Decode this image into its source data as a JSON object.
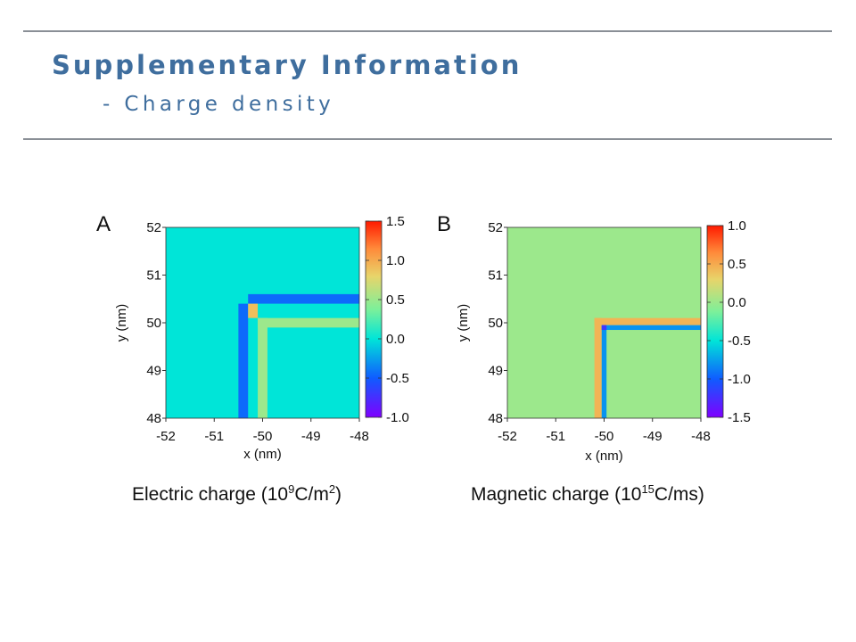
{
  "header": {
    "title": "Supplementary Information",
    "subtitle": "- Charge density"
  },
  "captions": {
    "a": {
      "pre": "Electric charge (10",
      "exp1": "9",
      "mid": "C/m",
      "exp2": "2",
      "post": ")"
    },
    "b": {
      "pre": "Magnetic charge (10",
      "exp1": "15",
      "post": "C/ms)"
    }
  },
  "colormap": "rainbow",
  "chart_data": [
    {
      "type": "heatmap",
      "panel_label": "A",
      "xlabel": "x (nm)",
      "ylabel": "y (nm)",
      "xlim": [
        -52,
        -48
      ],
      "ylim": [
        48,
        52
      ],
      "xticks": [
        -52,
        -51,
        -50,
        -49,
        -48
      ],
      "yticks": [
        48,
        49,
        50,
        51,
        52
      ],
      "xtick_labels": [
        "-52",
        "-51",
        "-50",
        "-49",
        "-48"
      ],
      "ytick_labels": [
        "48",
        "49",
        "50",
        "51",
        "52"
      ],
      "colorbar": {
        "range": [
          -1.0,
          1.5
        ],
        "ticks": [
          -1.0,
          -0.5,
          0.0,
          0.5,
          1.0,
          1.5
        ],
        "tick_labels": [
          "-1.0",
          "-0.5",
          "0.0",
          "0.5",
          "1.0",
          "1.5"
        ]
      },
      "background_value": 0.0,
      "corner_x": -50.3,
      "corner_y": 50.4,
      "regions": [
        {
          "desc": "negative horizontal strip",
          "x": [
            -50.3,
            -48
          ],
          "y": [
            50.4,
            50.6
          ],
          "value": -0.45
        },
        {
          "desc": "negative vertical strip",
          "x": [
            -50.5,
            -50.3
          ],
          "y": [
            48,
            50.4
          ],
          "value": -0.45
        },
        {
          "desc": "positive horizontal strip",
          "x": [
            -50.1,
            -48
          ],
          "y": [
            49.9,
            50.1
          ],
          "value": 0.5
        },
        {
          "desc": "positive vertical strip",
          "x": [
            -50.1,
            -49.9
          ],
          "y": [
            48,
            50.1
          ],
          "value": 0.5
        },
        {
          "desc": "corner diagonal",
          "x": [
            -50.3,
            -50.1
          ],
          "y": [
            50.1,
            50.4
          ],
          "value": 0.9
        }
      ]
    },
    {
      "type": "heatmap",
      "panel_label": "B",
      "xlabel": "x (nm)",
      "ylabel": "y (nm)",
      "xlim": [
        -52,
        -48
      ],
      "ylim": [
        48,
        52
      ],
      "xticks": [
        -52,
        -51,
        -50,
        -49,
        -48
      ],
      "yticks": [
        48,
        49,
        50,
        51,
        52
      ],
      "xtick_labels": [
        "-52",
        "-51",
        "-50",
        "-49",
        "-48"
      ],
      "ytick_labels": [
        "48",
        "49",
        "50",
        "51",
        "52"
      ],
      "colorbar": {
        "range": [
          -1.5,
          1.0
        ],
        "ticks": [
          -1.5,
          -1.0,
          -0.5,
          0.0,
          0.5,
          1.0
        ],
        "tick_labels": [
          "-1.5",
          "-1.0",
          "-0.5",
          "0.0",
          "0.5",
          "1.0"
        ]
      },
      "background_value": 0.0,
      "corner_x": -50.2,
      "corner_y": 50.1,
      "regions": [
        {
          "desc": "positive horizontal strip",
          "x": [
            -50.2,
            -48
          ],
          "y": [
            49.95,
            50.1
          ],
          "value": 0.45
        },
        {
          "desc": "positive vertical strip",
          "x": [
            -50.2,
            -50.05
          ],
          "y": [
            48,
            50.1
          ],
          "value": 0.45
        },
        {
          "desc": "negative horizontal strip",
          "x": [
            -50.05,
            -48
          ],
          "y": [
            49.85,
            49.95
          ],
          "value": -0.8
        },
        {
          "desc": "negative vertical strip",
          "x": [
            -50.05,
            -49.95
          ],
          "y": [
            48,
            49.95
          ],
          "value": -0.8
        },
        {
          "desc": "corner",
          "x": [
            -50.05,
            -49.95
          ],
          "y": [
            49.85,
            49.95
          ],
          "value": -1.2
        }
      ]
    }
  ]
}
